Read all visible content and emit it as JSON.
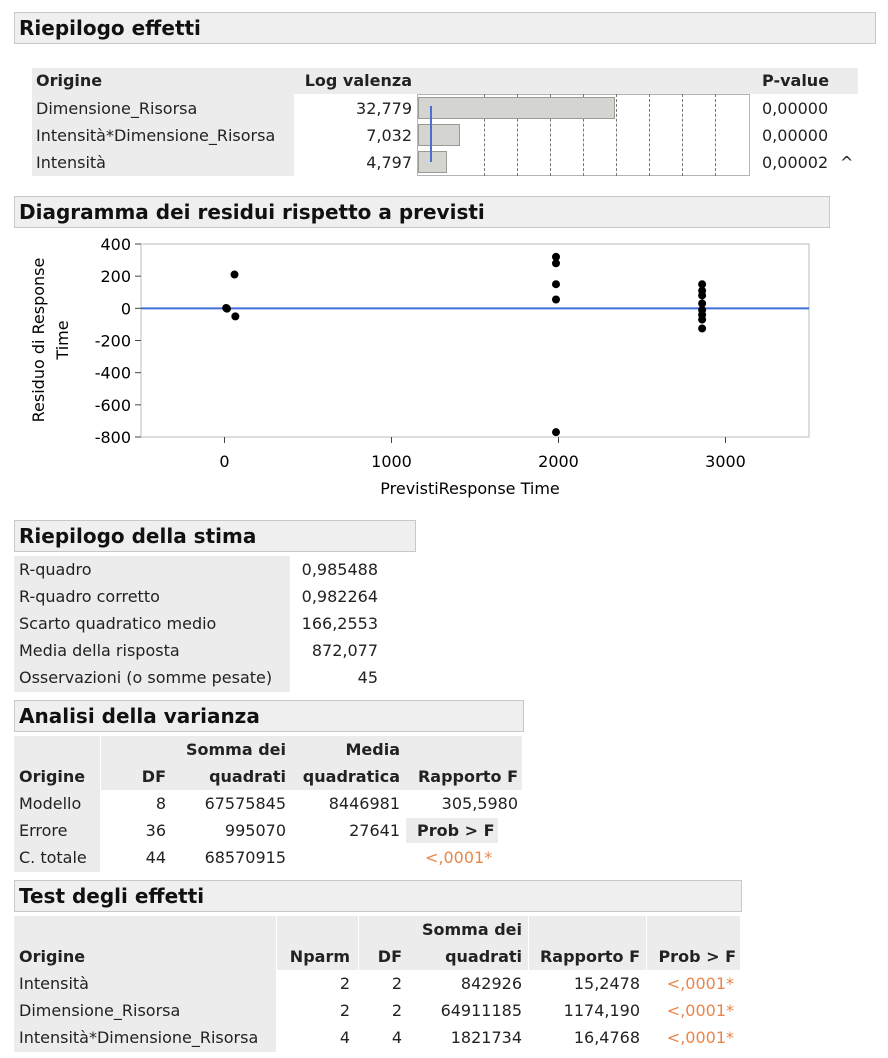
{
  "effects_summary": {
    "title": "Riepilogo effetti",
    "col_origin": "Origine",
    "col_logworth": "Log valenza",
    "col_pvalue": "P-value",
    "rows": [
      {
        "origin": "Dimensione_Risorsa",
        "logworth": "32,779",
        "logworth_value": 32.779,
        "pvalue": "0,00000",
        "flag": ""
      },
      {
        "origin": "Intensità*Dimensione_Risorsa",
        "logworth": "7,032",
        "logworth_value": 7.032,
        "pvalue": "0,00000",
        "flag": ""
      },
      {
        "origin": "Intensità",
        "logworth": "4,797",
        "logworth_value": 4.797,
        "pvalue": "0,00002",
        "flag": "^"
      }
    ],
    "bar_max_value": 55
  },
  "residual_plot": {
    "title": "Diagramma dei residui rispetto a previsti",
    "ylabel_line1": "Residuo di Response",
    "ylabel_line2": "Time",
    "xlabel": "PrevistiResponse Time",
    "y_ticks": [
      "400",
      "200",
      "0",
      "-200",
      "-400",
      "-600",
      "-800"
    ],
    "x_ticks": [
      "0",
      "1000",
      "2000",
      "3000"
    ],
    "line_color": "#3f6fd8"
  },
  "chart_data": {
    "type": "scatter",
    "title": "Diagramma dei residui rispetto a previsti",
    "xlabel": "PrevistiResponse Time",
    "ylabel": "Residuo di Response Time",
    "xlim": [
      -500,
      3500
    ],
    "ylim": [
      -800,
      400
    ],
    "x_ticks": [
      0,
      1000,
      2000,
      3000
    ],
    "y_ticks": [
      400,
      200,
      0,
      -200,
      -400,
      -600,
      -800
    ],
    "reference_line_y": 0,
    "grid": false,
    "points": [
      {
        "x": 10,
        "y": 2
      },
      {
        "x": 15,
        "y": -2
      },
      {
        "x": 60,
        "y": 210
      },
      {
        "x": 65,
        "y": -50
      },
      {
        "x": 1985,
        "y": 320
      },
      {
        "x": 1985,
        "y": 280
      },
      {
        "x": 1985,
        "y": 150
      },
      {
        "x": 1985,
        "y": 55
      },
      {
        "x": 1985,
        "y": -770
      },
      {
        "x": 2860,
        "y": 150
      },
      {
        "x": 2860,
        "y": 110
      },
      {
        "x": 2860,
        "y": 80
      },
      {
        "x": 2860,
        "y": 30
      },
      {
        "x": 2860,
        "y": -10
      },
      {
        "x": 2860,
        "y": -40
      },
      {
        "x": 2860,
        "y": -70
      },
      {
        "x": 2860,
        "y": -125
      }
    ]
  },
  "fit_summary": {
    "title": "Riepilogo della stima",
    "rows": [
      {
        "label": "R-quadro",
        "value": "0,985488"
      },
      {
        "label": "R-quadro corretto",
        "value": "0,982264"
      },
      {
        "label": "Scarto quadratico medio",
        "value": "166,2553"
      },
      {
        "label": "Media della risposta",
        "value": "872,077"
      },
      {
        "label": "Osservazioni (o somme pesate)",
        "value": "45"
      }
    ]
  },
  "anova": {
    "title": "Analisi della varianza",
    "h_origin": "Origine",
    "h_df": "DF",
    "h_ss1": "Somma dei",
    "h_ss2": "quadrati",
    "h_ms1": "Media",
    "h_ms2": "quadratica",
    "h_f": "Rapporto F",
    "h_prob": "Prob > F",
    "rows": [
      {
        "origin": "Modello",
        "df": "8",
        "ss": "67575845",
        "ms": "8446981",
        "f": "305,5980"
      },
      {
        "origin": "Errore",
        "df": "36",
        "ss": "995070",
        "ms": "27641"
      },
      {
        "origin": "C. totale",
        "df": "44",
        "ss": "68570915",
        "prob": "<,0001*"
      }
    ]
  },
  "effect_tests": {
    "title": "Test degli effetti",
    "h_origin": "Origine",
    "h_nparm": "Nparm",
    "h_df": "DF",
    "h_ss1": "Somma dei",
    "h_ss2": "quadrati",
    "h_f": "Rapporto F",
    "h_prob": "Prob > F",
    "rows": [
      {
        "origin": "Intensità",
        "nparm": "2",
        "df": "2",
        "ss": "842926",
        "f": "15,2478",
        "prob": "<,0001*"
      },
      {
        "origin": "Dimensione_Risorsa",
        "nparm": "2",
        "df": "2",
        "ss": "64911185",
        "f": "1174,190",
        "prob": "<,0001*"
      },
      {
        "origin": "Intensità*Dimensione_Risorsa",
        "nparm": "4",
        "df": "4",
        "ss": "1821734",
        "f": "16,4768",
        "prob": "<,0001*"
      }
    ]
  }
}
